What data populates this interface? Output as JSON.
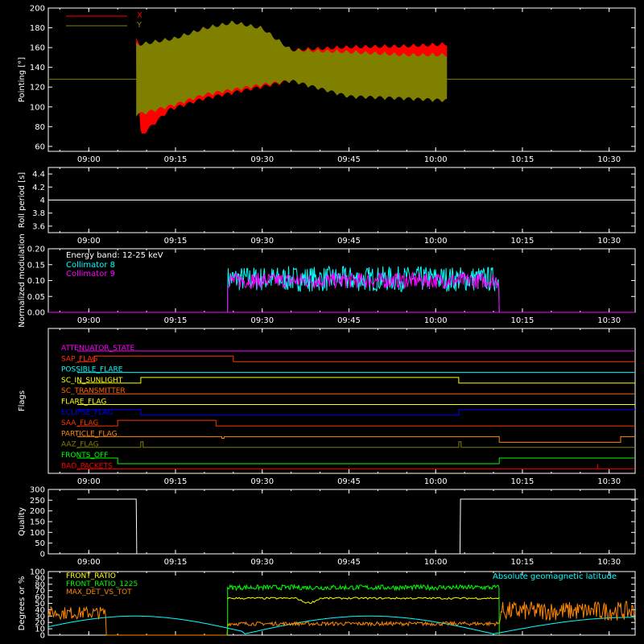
{
  "chart_data": [
    {
      "id": "pointing",
      "type": "area",
      "ylabel": "Pointing [°]",
      "ylim": [
        55,
        200
      ],
      "yticks": [
        60,
        80,
        100,
        120,
        140,
        160,
        180,
        200
      ],
      "xticks": [
        "09:00",
        "09:15",
        "09:30",
        "09:45",
        "10:00",
        "10:15",
        "10:30"
      ],
      "legend_position": "top-left",
      "series": [
        {
          "name": "X",
          "color": "#ff0000",
          "upper": [
            [
              8.2,
              170
            ],
            [
              10,
              158
            ],
            [
              14,
              163
            ],
            [
              20,
              168
            ],
            [
              25,
              170
            ],
            [
              30,
              162
            ],
            [
              35,
              160
            ],
            [
              45,
              163
            ],
            [
              55,
              164
            ],
            [
              62,
              166
            ]
          ],
          "lower": [
            [
              8.2,
              140
            ],
            [
              9,
              68
            ],
            [
              14,
              95
            ],
            [
              20,
              106
            ],
            [
              25,
              112
            ],
            [
              30,
              118
            ],
            [
              35,
              124
            ],
            [
              45,
              116
            ],
            [
              55,
              120
            ],
            [
              62,
              112
            ]
          ]
        },
        {
          "name": "Y",
          "color": "#808000",
          "upper": [
            [
              8.2,
              165
            ],
            [
              15,
              172
            ],
            [
              20,
              182
            ],
            [
              25,
              188
            ],
            [
              30,
              182
            ],
            [
              35,
              160
            ],
            [
              45,
              158
            ],
            [
              55,
              155
            ],
            [
              62,
              155
            ]
          ],
          "lower": [
            [
              8.2,
              90
            ],
            [
              10,
              92
            ],
            [
              15,
              100
            ],
            [
              20,
              110
            ],
            [
              25,
              115
            ],
            [
              30,
              120
            ],
            [
              35,
              124
            ],
            [
              45,
              108
            ],
            [
              55,
              106
            ],
            [
              62,
              104
            ]
          ]
        }
      ],
      "reference_line": {
        "value": 128,
        "color": "#808000"
      }
    },
    {
      "id": "roll",
      "type": "line",
      "ylabel": "Roll period [s]",
      "ylim": [
        3.5,
        4.5
      ],
      "yticks": [
        3.6,
        3.8,
        4.0,
        4.2,
        4.4
      ],
      "xticks": [
        "09:00",
        "09:15",
        "09:30",
        "09:45",
        "10:00",
        "10:15",
        "10:30"
      ],
      "series": [
        {
          "color": "#ffffff",
          "x": [
            -2,
            95
          ],
          "y": [
            4.0,
            4.0
          ]
        }
      ]
    },
    {
      "id": "modulation",
      "type": "line",
      "ylabel": "Normalized modulation",
      "ylim": [
        0,
        0.2
      ],
      "yticks": [
        "0.00",
        "0.05",
        "0.10",
        "0.15",
        "0.20"
      ],
      "xticks": [
        "09:00",
        "09:15",
        "09:30",
        "09:45",
        "10:00",
        "10:15",
        "10:30"
      ],
      "annotations": [
        "Energy band: 12-25 keV"
      ],
      "series": [
        {
          "name": "Collimator 8",
          "color": "#00ffff",
          "x_start": 24,
          "x_end": 71,
          "mean": 0.105,
          "noise": 0.04
        },
        {
          "name": "Collimator 9",
          "color": "#ff00ff",
          "x_start": 24,
          "x_end": 71,
          "mean": 0.1,
          "noise": 0.025
        }
      ],
      "baseline_color": "#ff00ff"
    },
    {
      "id": "flags",
      "type": "line",
      "ylabel": "Flags",
      "xticks": [
        "09:00",
        "09:15",
        "09:30",
        "09:45",
        "10:00",
        "10:15",
        "10:30"
      ],
      "rows": [
        {
          "name": "ATTENUATOR_STATE",
          "color": "#ff00ff",
          "states": [
            [
              -2,
              95,
              0
            ]
          ]
        },
        {
          "name": "SAP_FLAG",
          "color": "#ff3300",
          "states": [
            [
              -2,
              1,
              0
            ],
            [
              1,
              25,
              1
            ],
            [
              25,
              95,
              0
            ]
          ]
        },
        {
          "name": "POSSIBLE_FLARE",
          "color": "#00ffff",
          "states": [
            [
              -2,
              95,
              0
            ]
          ]
        },
        {
          "name": "SC_IN_SUNLIGHT",
          "color": "#ffff00",
          "states": [
            [
              -2,
              9,
              0
            ],
            [
              9,
              64,
              1
            ],
            [
              64,
              95,
              0
            ]
          ]
        },
        {
          "name": "SC_TRANSMITTER",
          "color": "#ff6600",
          "states": [
            [
              -2,
              95,
              0
            ]
          ]
        },
        {
          "name": "FLARE_FLAG",
          "color": "#ffff00",
          "states": [
            [
              -2,
              95,
              0
            ]
          ]
        },
        {
          "name": "ECLIPSE_FLAG",
          "color": "#0000ff",
          "states": [
            [
              -2,
              9,
              1
            ],
            [
              9,
              64,
              0
            ],
            [
              64,
              95,
              1
            ]
          ]
        },
        {
          "name": "SAA_FLAG",
          "color": "#ff3300",
          "states": [
            [
              -2,
              5,
              0
            ],
            [
              5,
              22,
              1
            ],
            [
              22,
              95,
              0
            ]
          ]
        },
        {
          "name": "PARTICLE_FLAG",
          "color": "#ff8800",
          "states": [
            [
              -2,
              23,
              0
            ],
            [
              23,
              23.4,
              -0.3
            ],
            [
              23.4,
              71,
              0
            ],
            [
              71,
              92,
              -1
            ],
            [
              92,
              95,
              0
            ]
          ]
        },
        {
          "name": "AAZ_FLAG",
          "color": "#808000",
          "states": [
            [
              -2,
              9,
              0
            ],
            [
              9,
              9.4,
              1
            ],
            [
              9.4,
              64,
              0
            ],
            [
              64,
              64.4,
              1
            ],
            [
              64.4,
              95,
              0
            ]
          ]
        },
        {
          "name": "FRONTS_OFF",
          "color": "#00ff00",
          "states": [
            [
              -2,
              5,
              0
            ],
            [
              5,
              71,
              -1
            ],
            [
              71,
              95,
              0
            ]
          ]
        },
        {
          "name": "BAD_PACKETS",
          "color": "#ff0000",
          "states": [
            [
              -2,
              95,
              0
            ]
          ],
          "spikes": [
            88
          ]
        }
      ]
    },
    {
      "id": "quality",
      "type": "line",
      "ylabel": "Quality",
      "ylim": [
        0,
        300
      ],
      "yticks": [
        0,
        50,
        100,
        150,
        200,
        250,
        300
      ],
      "xticks": [
        "09:00",
        "09:15",
        "09:30",
        "09:45",
        "10:00",
        "10:15",
        "10:30"
      ],
      "series": [
        {
          "color": "#ffffff",
          "x": [
            -2,
            8.2,
            8.3,
            64.2,
            64.3,
            95
          ],
          "y": [
            255,
            255,
            0,
            0,
            255,
            255
          ]
        }
      ]
    },
    {
      "id": "geomag",
      "type": "line",
      "ylabel": "Degrees or %",
      "ylim": [
        0,
        100
      ],
      "yticks": [
        0,
        10,
        20,
        30,
        40,
        50,
        60,
        70,
        80,
        90,
        100
      ],
      "annotations": [
        "Absolute geomagnetic latitude"
      ],
      "series": [
        {
          "name": "FRONT_RATIO",
          "color": "#ffff00"
        },
        {
          "name": "FRONT_RATIO_1225",
          "color": "#00ff00"
        },
        {
          "name": "MAX_DET_VS_TOT",
          "color": "#ff8800"
        },
        {
          "name": "Absolute geomagnetic latitude",
          "color": "#00ffff"
        }
      ]
    }
  ]
}
